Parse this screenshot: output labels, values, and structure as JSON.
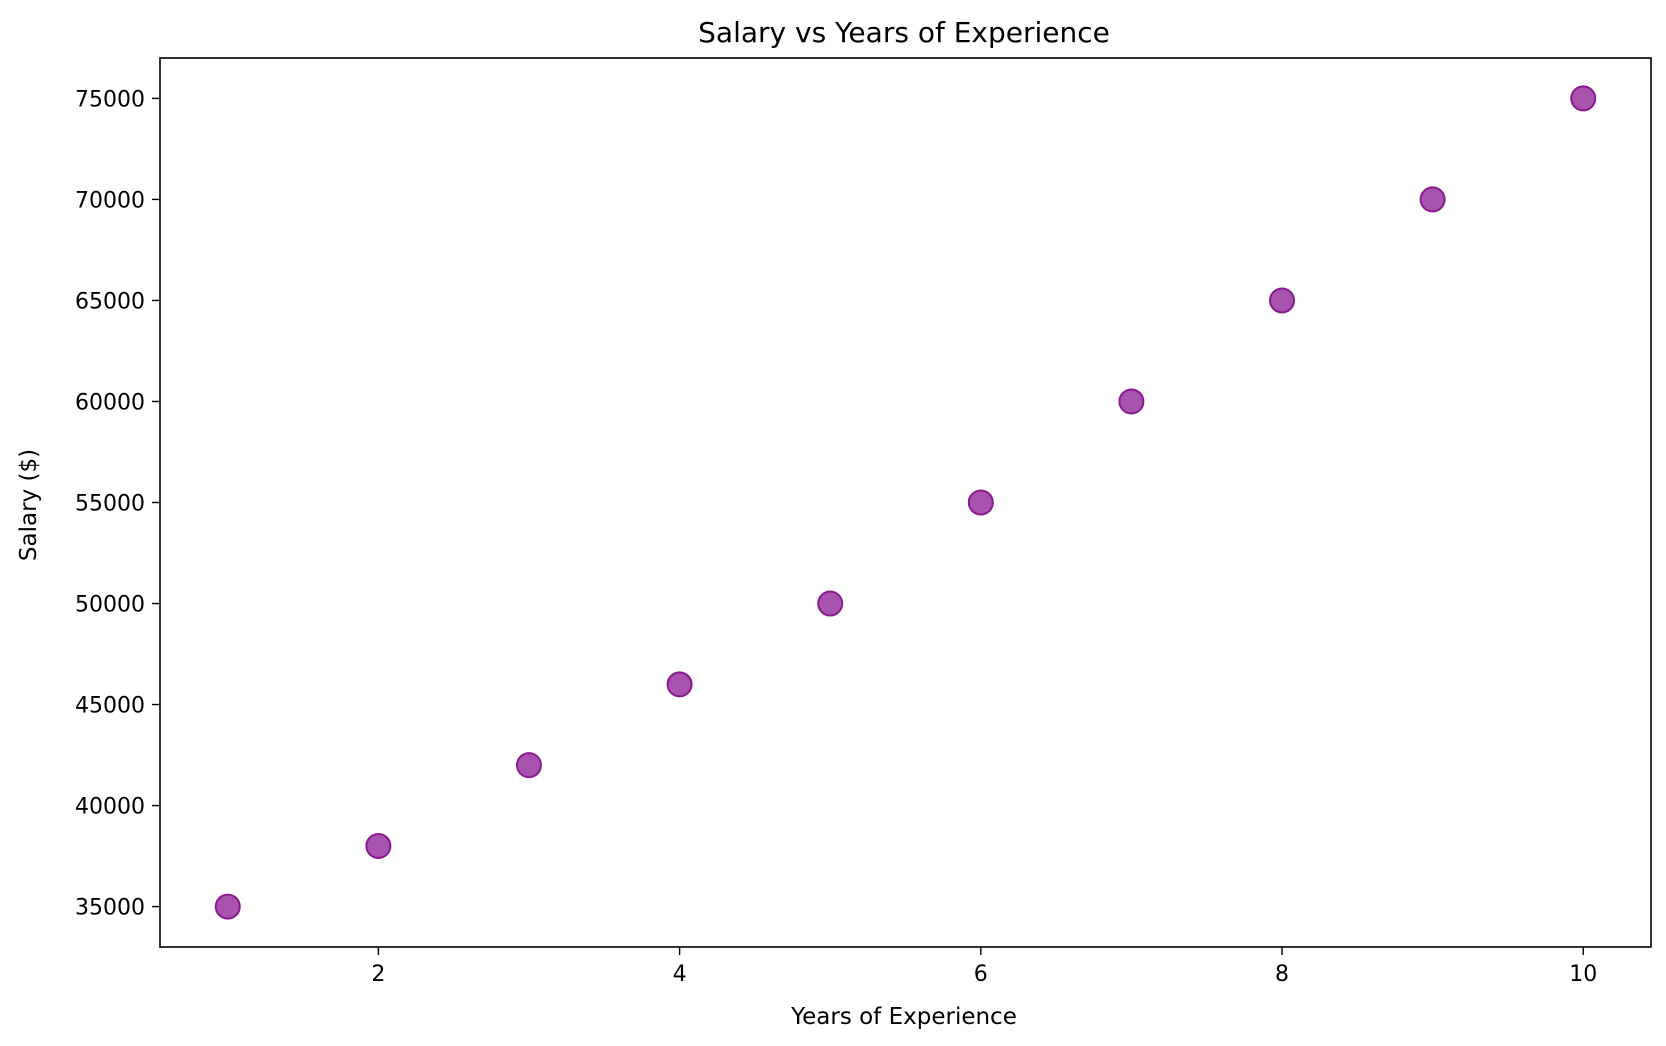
{
  "chart_data": {
    "type": "scatter",
    "title": "Salary vs Years of Experience",
    "xlabel": "Years of Experience",
    "ylabel": "Salary ($)",
    "xlim": [
      0.55,
      10.45
    ],
    "ylim": [
      33000,
      77000
    ],
    "x_ticks": [
      2,
      4,
      6,
      8,
      10
    ],
    "y_ticks": [
      35000,
      40000,
      45000,
      50000,
      55000,
      60000,
      65000,
      70000,
      75000
    ],
    "grid": false,
    "series": [
      {
        "x": [
          1,
          2,
          3,
          4,
          5,
          6,
          7,
          8,
          9,
          10
        ],
        "y": [
          35000,
          38000,
          42000,
          46000,
          50000,
          55000,
          60000,
          65000,
          70000,
          75000
        ],
        "color": "#8b1a92"
      }
    ]
  }
}
